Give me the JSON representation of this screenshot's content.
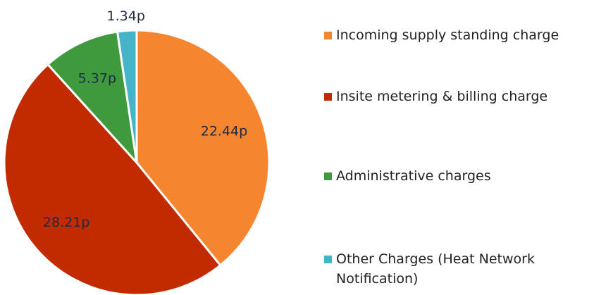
{
  "chart_data": {
    "type": "pie",
    "categories": [
      "Incoming supply standing charge",
      "Insite metering & billing charge",
      "Administrative charges",
      "Other Charges (Heat Network Notification)"
    ],
    "values": [
      22.44,
      28.21,
      5.37,
      1.34
    ],
    "value_labels": [
      "22.44p",
      "28.21p",
      "5.37p",
      "1.34p"
    ],
    "colors": [
      "#f5862f",
      "#c22b00",
      "#3f9a3d",
      "#45b4c8"
    ],
    "legend": "right"
  }
}
